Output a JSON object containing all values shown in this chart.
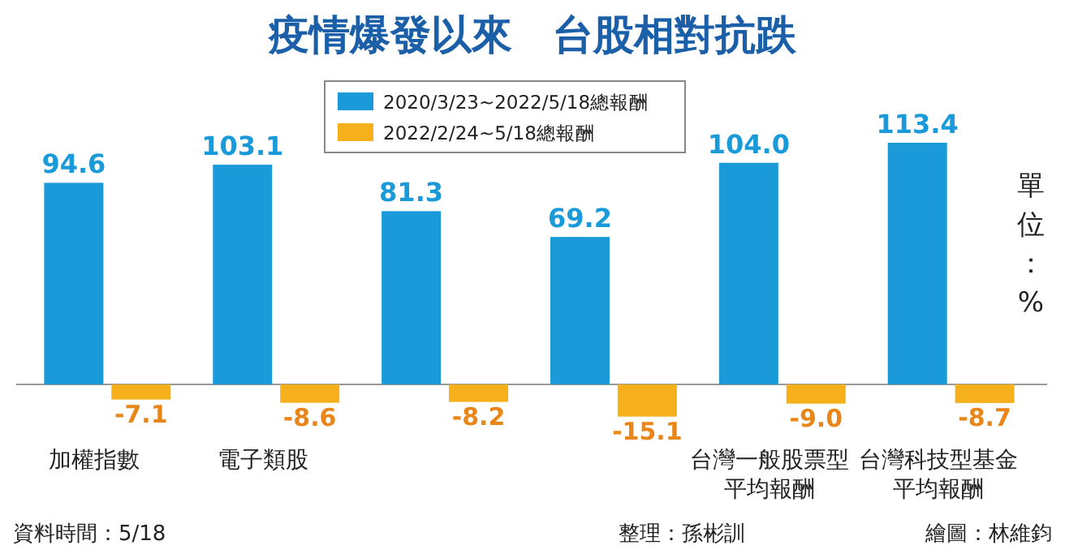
{
  "chart_data": {
    "type": "bar",
    "title": "疫情爆發以來　台股相對抗跌",
    "categories": [
      "加權指數",
      "電子類股",
      null,
      null,
      "台灣一般股票型平均報酬",
      "台灣科技型基金平均報酬"
    ],
    "series": [
      {
        "name": "2020/3/23~2022/5/18總報酬",
        "color": "#1a9ad9",
        "values": [
          94.6,
          103.1,
          81.3,
          69.2,
          104.0,
          113.4
        ],
        "value_labels": [
          "94.6",
          "103.1",
          "81.3",
          "69.2",
          "104.0",
          "113.4"
        ]
      },
      {
        "name": "2022/2/24~5/18總報酬",
        "color": "#f5b01c",
        "values": [
          -7.1,
          -8.6,
          -8.2,
          -15.1,
          -9.0,
          -8.7
        ],
        "value_labels": [
          "-7.1",
          "-8.6",
          "-8.2",
          "-15.1",
          "-9.0",
          "-8.7"
        ]
      }
    ],
    "legend": "top",
    "ylabel": "單位：%",
    "annotations": [
      "資料時間：5/18",
      "整理：孫彬訓",
      "繪圖：林維鈞"
    ]
  }
}
